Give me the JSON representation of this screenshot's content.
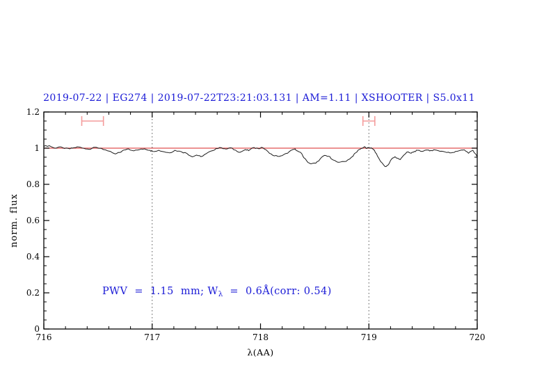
{
  "title": {
    "text": "2019-07-22 | EG274 | 2019-07-22T23:21:03.131 | AM=1.11 | XSHOOTER | S5.0x11",
    "color": "#1a1ad6"
  },
  "annotation": {
    "part1": "PWV  =  1.15  mm; W",
    "subscript": "λ",
    "part2": "  =  0.6Å(corr: 0.54)",
    "color": "#1a1ad6"
  },
  "chart_data": {
    "type": "line",
    "title": "2019-07-22 | EG274 | 2019-07-22T23:21:03.131 | AM=1.11 | XSHOOTER | S5.0x11",
    "xlabel": "λ(AA)",
    "ylabel": "norm. flux",
    "xlim": [
      716,
      720
    ],
    "ylim": [
      0,
      1.2
    ],
    "grid": false,
    "x_major_ticks": [
      716,
      717,
      718,
      719,
      720
    ],
    "x_tick_labels": [
      "716",
      "717",
      "718",
      "719",
      "720"
    ],
    "x_minor_step": 0.2,
    "y_major_ticks": [
      0,
      0.2,
      0.4,
      0.6,
      0.8,
      1,
      1.2
    ],
    "y_tick_labels": [
      "0",
      "0.2",
      "0.4",
      "0.6",
      "0.8",
      "1",
      "1.2"
    ],
    "y_minor_step": 0.05,
    "guide_lines_x": [
      717,
      719
    ],
    "guide_line_color": "#555555",
    "reference_line_y": 1.0,
    "reference_line_color": "#e05050",
    "line_color": "#1c1c1c",
    "axis_color": "#000000",
    "markers": [
      {
        "name": "pwv-band-marker-1",
        "x_center": 716.45,
        "x_half_width": 0.1,
        "y": 1.15,
        "cap_half_height": 0.027,
        "color": "#f49c9c"
      },
      {
        "name": "pwv-band-marker-2",
        "x_center": 719.0,
        "x_half_width": 0.055,
        "y": 1.15,
        "cap_half_height": 0.027,
        "color": "#f49c9c"
      }
    ],
    "series": [
      {
        "name": "normalized spectrum",
        "x": [
          716.0,
          716.05,
          716.1,
          716.14,
          716.19,
          716.24,
          716.28,
          716.32,
          716.37,
          716.42,
          716.46,
          716.53,
          716.59,
          716.66,
          716.7,
          716.74,
          716.78,
          716.83,
          716.88,
          716.93,
          716.98,
          717.0,
          717.06,
          717.11,
          717.16,
          717.21,
          717.27,
          717.32,
          717.37,
          717.41,
          717.45,
          717.5,
          717.55,
          717.59,
          717.64,
          717.68,
          717.72,
          717.77,
          717.81,
          717.86,
          717.89,
          717.94,
          717.98,
          718.02,
          718.07,
          718.11,
          718.16,
          718.2,
          718.25,
          718.29,
          718.32,
          718.34,
          718.38,
          718.4,
          718.44,
          718.47,
          718.51,
          718.55,
          718.59,
          718.63,
          718.66,
          718.7,
          718.74,
          718.79,
          718.84,
          718.88,
          718.91,
          718.94,
          718.96,
          718.98,
          719.0,
          719.03,
          719.05,
          719.08,
          719.11,
          719.15,
          719.18,
          719.21,
          719.24,
          719.26,
          719.29,
          719.32,
          719.35,
          719.39,
          719.42,
          719.45,
          719.49,
          719.53,
          719.56,
          719.6,
          719.64,
          719.69,
          719.72,
          719.76,
          719.8,
          719.85,
          719.88,
          719.92,
          719.96,
          720.0
        ],
        "y": [
          1.01,
          1.014,
          1.0,
          1.007,
          0.998,
          0.996,
          1.003,
          1.007,
          0.999,
          0.993,
          1.005,
          0.999,
          0.985,
          0.968,
          0.976,
          0.99,
          0.996,
          0.985,
          0.991,
          0.996,
          0.988,
          0.982,
          0.988,
          0.98,
          0.974,
          0.988,
          0.98,
          0.971,
          0.952,
          0.962,
          0.953,
          0.97,
          0.985,
          0.998,
          1.002,
          0.995,
          1.002,
          0.989,
          0.977,
          0.992,
          0.986,
          1.004,
          0.997,
          1.003,
          0.98,
          0.962,
          0.955,
          0.959,
          0.972,
          0.99,
          0.996,
          0.985,
          0.97,
          0.947,
          0.92,
          0.914,
          0.917,
          0.94,
          0.96,
          0.955,
          0.938,
          0.926,
          0.924,
          0.927,
          0.95,
          0.975,
          0.992,
          1.0,
          1.008,
          0.998,
          1.003,
          0.998,
          0.99,
          0.955,
          0.925,
          0.898,
          0.908,
          0.94,
          0.952,
          0.945,
          0.937,
          0.96,
          0.978,
          0.972,
          0.982,
          0.988,
          0.982,
          0.99,
          0.985,
          0.991,
          0.986,
          0.981,
          0.976,
          0.974,
          0.982,
          0.989,
          0.991,
          0.972,
          0.988,
          0.952
        ]
      }
    ]
  }
}
